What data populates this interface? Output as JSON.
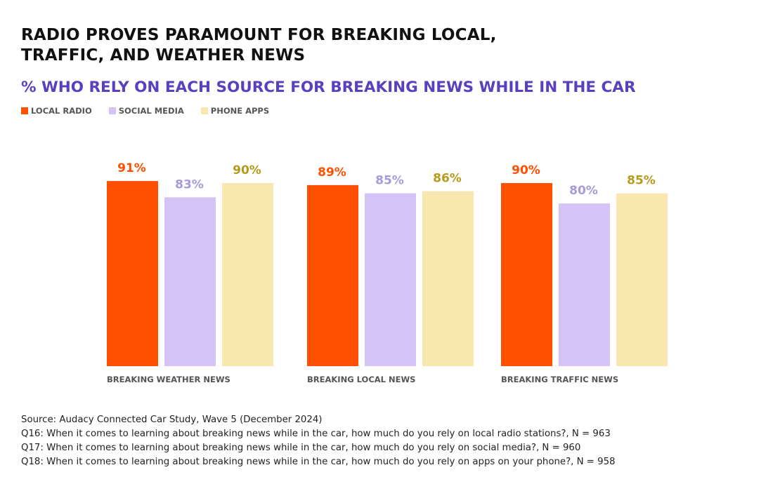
{
  "title_lines": [
    "RADIO PROVES PARAMOUNT FOR BREAKING LOCAL,",
    "TRAFFIC, AND WEATHER NEWS"
  ],
  "subtitle": "% WHO RELY ON EACH SOURCE FOR BREAKING NEWS WHILE IN THE CAR",
  "legend": [
    {
      "label": "LOCAL RADIO",
      "color": "#ff4f00"
    },
    {
      "label": "SOCIAL MEDIA",
      "color": "#d4c4f6"
    },
    {
      "label": "PHONE APPS",
      "color": "#f8e8b0"
    }
  ],
  "chart_data": {
    "type": "bar",
    "categories": [
      "BREAKING WEATHER NEWS",
      "BREAKING LOCAL NEWS",
      "BREAKING TRAFFIC NEWS"
    ],
    "series": [
      {
        "name": "LOCAL RADIO",
        "values": [
          91,
          89,
          90
        ],
        "color": "#ff4f00",
        "label_color": "#ff4f00"
      },
      {
        "name": "SOCIAL MEDIA",
        "values": [
          83,
          85,
          80
        ],
        "color": "#d4c4f6",
        "label_color": "#a89ad8"
      },
      {
        "name": "PHONE APPS",
        "values": [
          90,
          86,
          85
        ],
        "color": "#f8e8b0",
        "label_color": "#b59a1c"
      }
    ],
    "value_suffix": "%",
    "ylim": [
      0,
      100
    ],
    "grid": false,
    "legend_position": "top-left"
  },
  "source_lines": [
    "Source: Audacy Connected Car Study, Wave 5 (December 2024)",
    "Q16: When it comes to learning about breaking news while in the car, how much do you rely on local radio stations?, N = 963",
    "Q17: When it comes to learning about breaking news while in the car, how much do you rely on social media?, N = 960",
    "Q18: When it comes to learning about breaking news while in the car, how much do you rely on apps on your phone?, N = 958"
  ]
}
